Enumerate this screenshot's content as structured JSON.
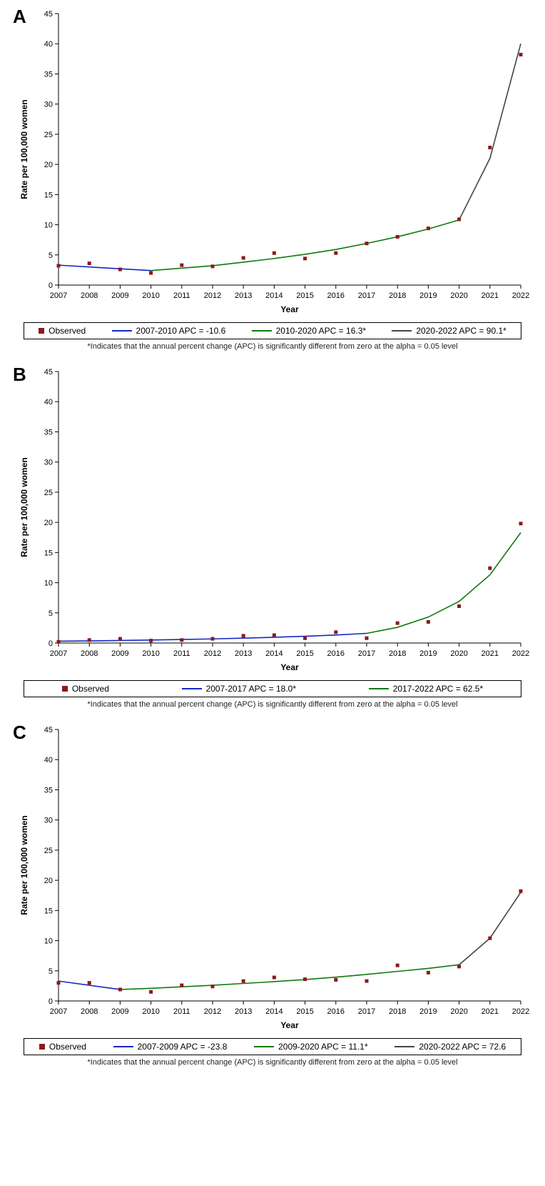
{
  "global": {
    "xlabel": "Year",
    "ylabel": "Rate per 100,000 women",
    "footnote": "*Indicates that the annual percent change (APC) is significantly different from zero at the alpha = 0.05 level",
    "observed_label": "Observed",
    "label_fontsize": 12,
    "tick_fontsize": 11,
    "font_family": "Arial",
    "ylim": [
      0,
      45
    ],
    "ytick_step": 5,
    "years": [
      2007,
      2008,
      2009,
      2010,
      2011,
      2012,
      2013,
      2014,
      2015,
      2016,
      2017,
      2018,
      2019,
      2020,
      2021,
      2022
    ],
    "background_color": "#ffffff",
    "axis_color": "#000000",
    "marker_color": "#8b1a1a",
    "marker_size": 5,
    "line_width": 1.6,
    "colors": {
      "seg1": "#1527c8",
      "seg2": "#0f7a0f",
      "seg3": "#444444"
    }
  },
  "panels": [
    {
      "id": "A",
      "observed": [
        3.2,
        3.6,
        2.6,
        2.0,
        3.3,
        3.1,
        4.5,
        5.3,
        4.4,
        5.3,
        6.9,
        8.0,
        9.4,
        10.9,
        22.8,
        38.2
      ],
      "segments": [
        {
          "label": "2007-2010 APC = -10.6",
          "color_key": "seg1",
          "points": [
            [
              2007,
              3.3
            ],
            [
              2010,
              2.4
            ]
          ]
        },
        {
          "label": "2010-2020 APC = 16.3*",
          "color_key": "seg2",
          "points": [
            [
              2010,
              2.4
            ],
            [
              2011,
              2.8
            ],
            [
              2012,
              3.2
            ],
            [
              2013,
              3.8
            ],
            [
              2014,
              4.4
            ],
            [
              2015,
              5.1
            ],
            [
              2016,
              5.9
            ],
            [
              2017,
              6.9
            ],
            [
              2018,
              8.0
            ],
            [
              2019,
              9.3
            ],
            [
              2020,
              10.8
            ]
          ]
        },
        {
          "label": "2020-2022 APC = 90.1*",
          "color_key": "seg3",
          "points": [
            [
              2020,
              10.8
            ],
            [
              2021,
              21.0
            ],
            [
              2022,
              40.0
            ]
          ]
        }
      ]
    },
    {
      "id": "B",
      "observed": [
        0.2,
        0.5,
        0.7,
        0.4,
        0.5,
        0.7,
        1.2,
        1.3,
        0.8,
        1.8,
        0.8,
        3.3,
        3.5,
        6.1,
        12.4,
        19.8
      ],
      "segments": [
        {
          "label": "2007-2017 APC = 18.0*",
          "color_key": "seg1",
          "points": [
            [
              2007,
              0.3
            ],
            [
              2008,
              0.35
            ],
            [
              2009,
              0.42
            ],
            [
              2010,
              0.49
            ],
            [
              2011,
              0.58
            ],
            [
              2012,
              0.68
            ],
            [
              2013,
              0.81
            ],
            [
              2014,
              0.95
            ],
            [
              2015,
              1.12
            ],
            [
              2016,
              1.33
            ],
            [
              2017,
              1.6
            ]
          ]
        },
        {
          "label": "2017-2022 APC = 62.5*",
          "color_key": "seg2",
          "points": [
            [
              2017,
              1.6
            ],
            [
              2018,
              2.6
            ],
            [
              2019,
              4.3
            ],
            [
              2020,
              6.9
            ],
            [
              2021,
              11.3
            ],
            [
              2022,
              18.3
            ]
          ]
        }
      ]
    },
    {
      "id": "C",
      "observed": [
        3.0,
        3.0,
        1.9,
        1.5,
        2.6,
        2.4,
        3.3,
        3.9,
        3.6,
        3.5,
        3.3,
        5.9,
        4.7,
        5.7,
        10.4,
        18.2
      ],
      "segments": [
        {
          "label": "2007-2009 APC = -23.8",
          "color_key": "seg1",
          "points": [
            [
              2007,
              3.3
            ],
            [
              2009,
              1.9
            ]
          ]
        },
        {
          "label": "2009-2020 APC = 11.1*",
          "color_key": "seg2",
          "points": [
            [
              2009,
              1.9
            ],
            [
              2010,
              2.1
            ],
            [
              2011,
              2.35
            ],
            [
              2012,
              2.6
            ],
            [
              2013,
              2.9
            ],
            [
              2014,
              3.2
            ],
            [
              2015,
              3.55
            ],
            [
              2016,
              3.95
            ],
            [
              2017,
              4.4
            ],
            [
              2018,
              4.9
            ],
            [
              2019,
              5.4
            ],
            [
              2020,
              6.0
            ]
          ]
        },
        {
          "label": "2020-2022 APC = 72.6",
          "color_key": "seg3",
          "points": [
            [
              2020,
              6.0
            ],
            [
              2021,
              10.4
            ],
            [
              2022,
              18.0
            ]
          ]
        }
      ]
    }
  ]
}
